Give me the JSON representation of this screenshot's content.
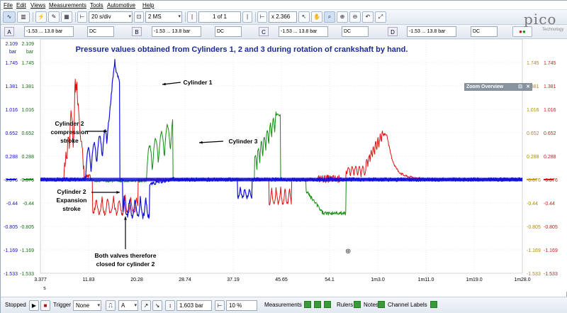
{
  "menu": [
    "File",
    "Edit",
    "Views",
    "Measurements",
    "Tools",
    "Automotive",
    "Help"
  ],
  "toolbar": {
    "timebase": "20 s/div",
    "samples": "2 MS",
    "buffer": "1 of 1",
    "zoom": "x 2.366"
  },
  "channels": [
    {
      "letter": "A",
      "range": "-1.53 ... 13.8 bar",
      "coupling": "DC",
      "color": "#1010e0"
    },
    {
      "letter": "B",
      "range": "-1.53 ... 13.8 bar",
      "coupling": "DC",
      "color": "#e01010"
    },
    {
      "letter": "C",
      "range": "-1.53 ... 13.8 bar",
      "coupling": "DC",
      "color": "#109010"
    },
    {
      "letter": "D",
      "range": "-1.53 ... 13.8 bar",
      "coupling": "DC",
      "color": "#c8a000"
    }
  ],
  "logo": {
    "name": "pico",
    "sub": "Technology"
  },
  "plot": {
    "title": "Pressure values obtained from Cylinders 1, 2 and 3 during rotation of crankshaft by hand.",
    "unit": "bar",
    "left_axis_values": [
      "2.109",
      "1.745",
      "1.381",
      "1.016",
      "0.652",
      "0.288",
      "-0.076",
      "-0.44",
      "-0.805",
      "-1.169",
      "-1.533"
    ],
    "left_axis_values_b": [
      "2.109",
      "1.745",
      "1.381",
      "1.016",
      "0.652",
      "0.288",
      "-0.076",
      "-0.44",
      "-0.805",
      "-1.169",
      "-1.533"
    ],
    "right_axis_values": [
      "1.745",
      "1.381",
      "1.016",
      "0.652",
      "0.288",
      "-0.076",
      "-0.44",
      "-0.805",
      "-1.169",
      "-1.533"
    ],
    "x_ticks": [
      "3.377",
      "11.83",
      "20.28",
      "28.74",
      "37.19",
      "45.65",
      "54.1",
      "1m3.0",
      "1m11.0",
      "1m19.0",
      "1m28.0"
    ],
    "x_unit": "s",
    "overview": "Zoom Overview",
    "annotations": [
      {
        "text": "Cylinder 1"
      },
      {
        "text": "Cylinder 2"
      },
      {
        "text": "compression"
      },
      {
        "text": "stroke"
      },
      {
        "text": "Cylinder 3"
      },
      {
        "text": "Cylinder 2"
      },
      {
        "text": "Expansion"
      },
      {
        "text": "stroke"
      },
      {
        "text": "Both valves therefore"
      },
      {
        "text": "closed for cylinder 2"
      }
    ]
  },
  "bottom": {
    "status": "Stopped",
    "trigger_label": "Trigger",
    "trigger_mode": "None",
    "trigger_channel": "A",
    "threshold": "1.603 bar",
    "pretrigger": "10 %",
    "measurements": "Measurements",
    "rulers": "Rulers",
    "notes": "Notes",
    "channel_labels": "Channel Labels"
  }
}
